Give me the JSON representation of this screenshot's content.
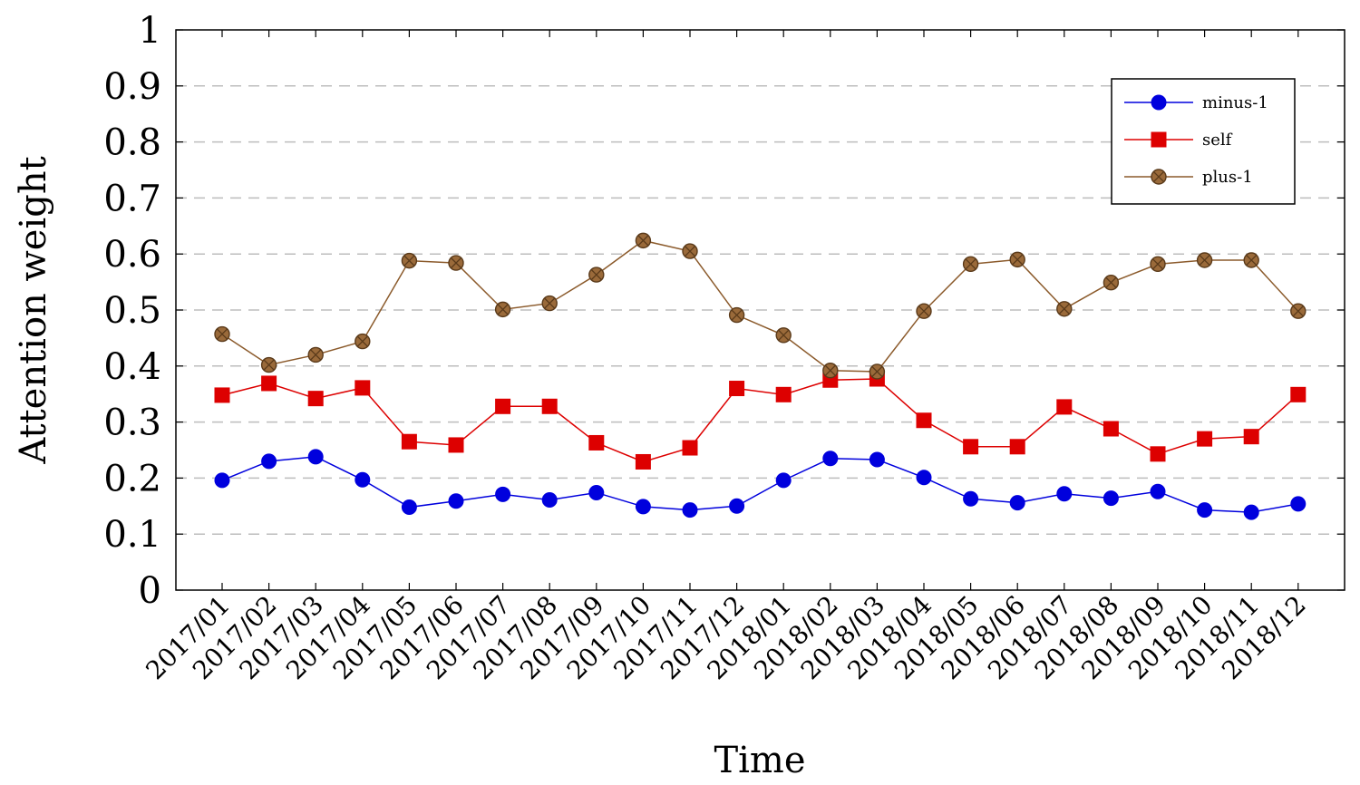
{
  "chart_data": {
    "type": "line",
    "title": "",
    "xlabel": "Time",
    "ylabel": "Attention weight",
    "ylim": [
      0,
      1
    ],
    "yticks": [
      "0",
      "0.1",
      "0.2",
      "0.3",
      "0.4",
      "0.5",
      "0.6",
      "0.7",
      "0.8",
      "0.9",
      "1"
    ],
    "grid": "horizontal dashed",
    "legend_position": "top-right",
    "categories": [
      "2017/01",
      "2017/02",
      "2017/03",
      "2017/04",
      "2017/05",
      "2017/06",
      "2017/07",
      "2017/08",
      "2017/09",
      "2017/10",
      "2017/11",
      "2017/12",
      "2018/01",
      "2018/02",
      "2018/03",
      "2018/04",
      "2018/05",
      "2018/06",
      "2018/07",
      "2018/08",
      "2018/09",
      "2018/10",
      "2018/11",
      "2018/12"
    ],
    "series": [
      {
        "name": "minus-1",
        "color": "#0000dd",
        "marker": "circle",
        "values": [
          0.196,
          0.23,
          0.238,
          0.197,
          0.148,
          0.159,
          0.171,
          0.161,
          0.174,
          0.149,
          0.143,
          0.15,
          0.196,
          0.235,
          0.233,
          0.201,
          0.163,
          0.156,
          0.172,
          0.164,
          0.176,
          0.143,
          0.139,
          0.154
        ]
      },
      {
        "name": "self",
        "color": "#dd0000",
        "marker": "square",
        "values": [
          0.348,
          0.369,
          0.342,
          0.361,
          0.265,
          0.259,
          0.328,
          0.328,
          0.263,
          0.229,
          0.254,
          0.36,
          0.349,
          0.375,
          0.377,
          0.303,
          0.256,
          0.256,
          0.327,
          0.288,
          0.243,
          0.27,
          0.274,
          0.349
        ]
      },
      {
        "name": "plus-1",
        "color": "#8b5a2b",
        "marker": "circle-x",
        "values": [
          0.457,
          0.402,
          0.42,
          0.444,
          0.588,
          0.584,
          0.501,
          0.512,
          0.563,
          0.624,
          0.605,
          0.491,
          0.455,
          0.392,
          0.39,
          0.498,
          0.582,
          0.59,
          0.502,
          0.549,
          0.582,
          0.589,
          0.589,
          0.498
        ]
      }
    ]
  }
}
